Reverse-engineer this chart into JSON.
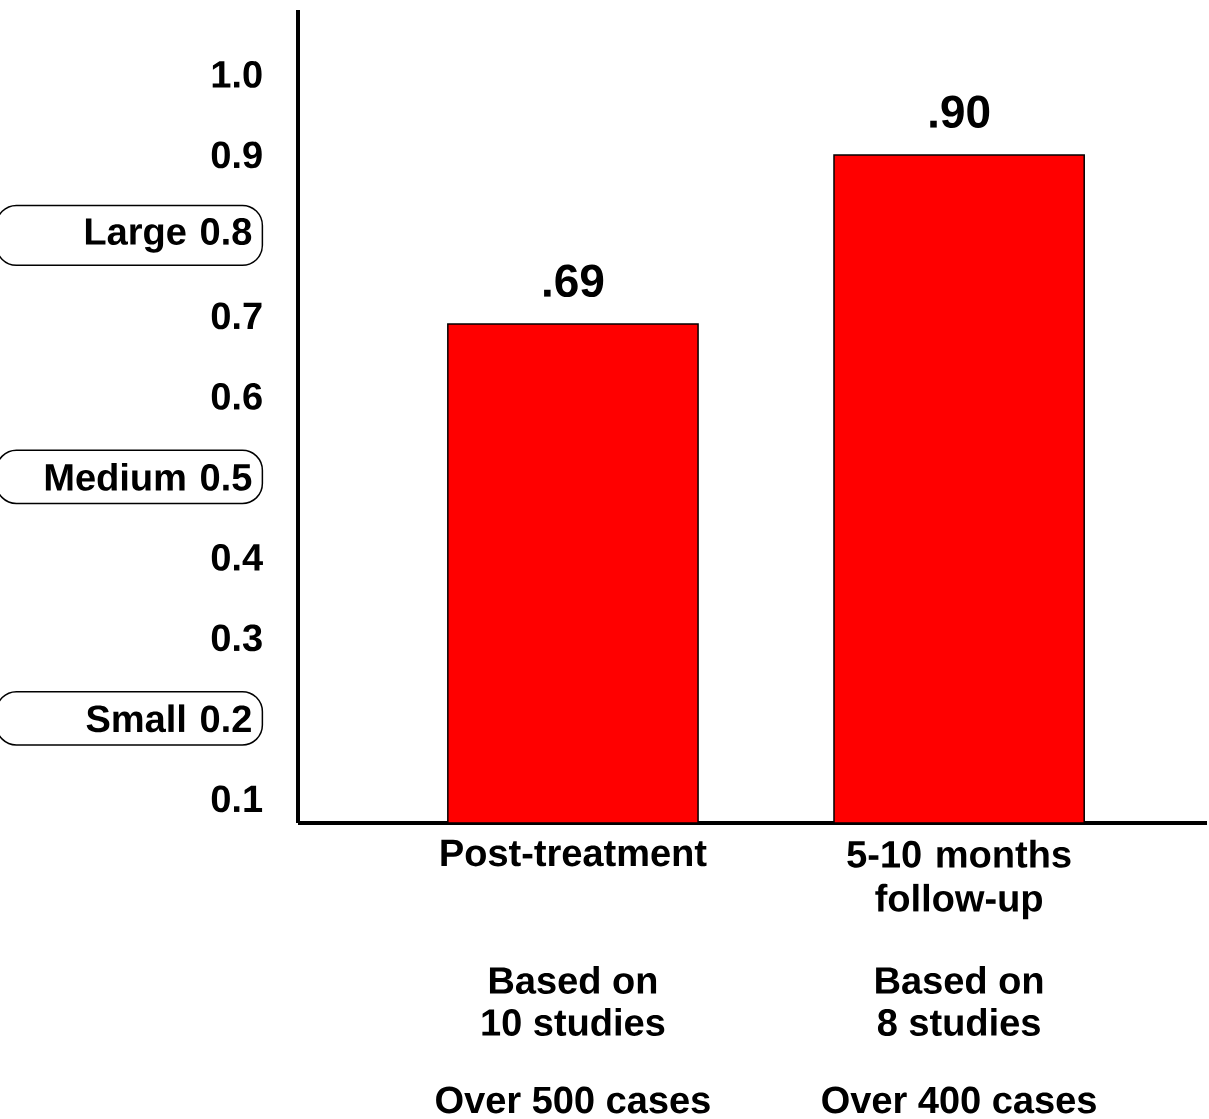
{
  "chart_data": {
    "type": "bar",
    "categories": [
      "Post-treatment",
      "5-10 months follow-up"
    ],
    "values": [
      0.69,
      0.9
    ],
    "value_labels": [
      ".69",
      ".90"
    ],
    "color": "#ff0000",
    "ylim": [
      0.07,
      1.08
    ],
    "yticks": [
      0.1,
      {
        "value": 0.2,
        "label": "Small 0.2"
      },
      0.3,
      0.4,
      {
        "value": 0.5,
        "label": "Medium 0.5"
      },
      0.6,
      0.7,
      {
        "value": 0.8,
        "label": "Large 0.8"
      },
      0.9,
      {
        "value": 1.0,
        "label": "1.0"
      }
    ],
    "annotations": [
      "Based on",
      "10 studies",
      "Over 500 cases",
      "Based on",
      "8 studies",
      "Over 400 cases"
    ]
  }
}
